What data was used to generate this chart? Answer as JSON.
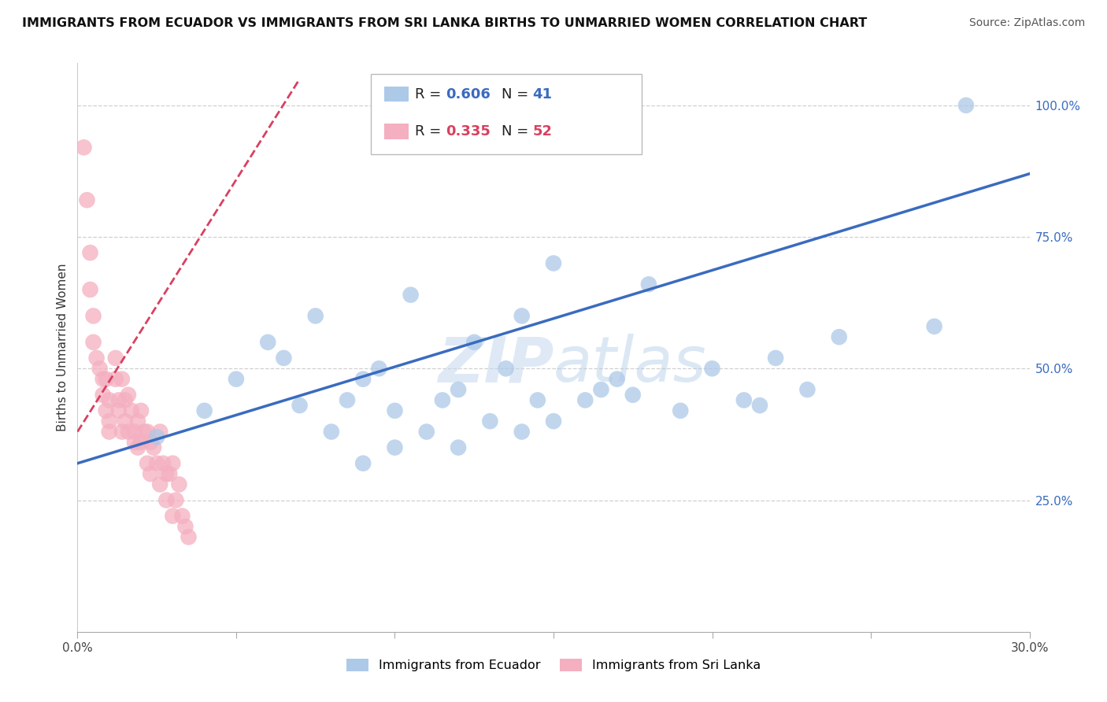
{
  "title": "IMMIGRANTS FROM ECUADOR VS IMMIGRANTS FROM SRI LANKA BIRTHS TO UNMARRIED WOMEN CORRELATION CHART",
  "source": "Source: ZipAtlas.com",
  "ylabel": "Births to Unmarried Women",
  "xlim": [
    0.0,
    0.3
  ],
  "ylim": [
    0.0,
    1.08
  ],
  "xtick_values": [
    0.0,
    0.05,
    0.1,
    0.15,
    0.2,
    0.25,
    0.3
  ],
  "xtick_labels": [
    "0.0%",
    "",
    "",
    "",
    "",
    "",
    "30.0%"
  ],
  "ytick_values": [
    0.25,
    0.5,
    0.75,
    1.0
  ],
  "ytick_labels": [
    "25.0%",
    "50.0%",
    "75.0%",
    "100.0%"
  ],
  "ecuador_color": "#adc9e8",
  "srilanka_color": "#f4afc0",
  "ecuador_line_color": "#3a6bbf",
  "srilanka_line_color": "#d94060",
  "ecuador_R": 0.606,
  "ecuador_N": 41,
  "srilanka_R": 0.335,
  "srilanka_N": 52,
  "ecuador_scatter_x": [
    0.025,
    0.04,
    0.05,
    0.06,
    0.065,
    0.07,
    0.075,
    0.08,
    0.085,
    0.09,
    0.09,
    0.095,
    0.1,
    0.1,
    0.105,
    0.11,
    0.115,
    0.12,
    0.12,
    0.125,
    0.13,
    0.135,
    0.14,
    0.14,
    0.145,
    0.15,
    0.15,
    0.16,
    0.165,
    0.17,
    0.175,
    0.18,
    0.19,
    0.2,
    0.21,
    0.215,
    0.22,
    0.23,
    0.24,
    0.27,
    0.28
  ],
  "ecuador_scatter_y": [
    0.37,
    0.42,
    0.48,
    0.55,
    0.52,
    0.43,
    0.6,
    0.38,
    0.44,
    0.32,
    0.48,
    0.5,
    0.35,
    0.42,
    0.64,
    0.38,
    0.44,
    0.35,
    0.46,
    0.55,
    0.4,
    0.5,
    0.38,
    0.6,
    0.44,
    0.4,
    0.7,
    0.44,
    0.46,
    0.48,
    0.45,
    0.66,
    0.42,
    0.5,
    0.44,
    0.43,
    0.52,
    0.46,
    0.56,
    0.58,
    1.0
  ],
  "srilanka_scatter_x": [
    0.002,
    0.003,
    0.004,
    0.004,
    0.005,
    0.005,
    0.006,
    0.007,
    0.008,
    0.008,
    0.009,
    0.009,
    0.01,
    0.01,
    0.01,
    0.012,
    0.012,
    0.013,
    0.013,
    0.014,
    0.014,
    0.015,
    0.015,
    0.016,
    0.016,
    0.017,
    0.018,
    0.018,
    0.019,
    0.019,
    0.02,
    0.02,
    0.021,
    0.022,
    0.022,
    0.023,
    0.023,
    0.024,
    0.025,
    0.026,
    0.026,
    0.027,
    0.028,
    0.028,
    0.029,
    0.03,
    0.03,
    0.031,
    0.032,
    0.033,
    0.034,
    0.035
  ],
  "srilanka_scatter_y": [
    0.92,
    0.82,
    0.72,
    0.65,
    0.6,
    0.55,
    0.52,
    0.5,
    0.48,
    0.45,
    0.48,
    0.42,
    0.44,
    0.4,
    0.38,
    0.52,
    0.48,
    0.44,
    0.42,
    0.48,
    0.38,
    0.44,
    0.4,
    0.45,
    0.38,
    0.42,
    0.38,
    0.36,
    0.4,
    0.35,
    0.42,
    0.36,
    0.38,
    0.38,
    0.32,
    0.36,
    0.3,
    0.35,
    0.32,
    0.38,
    0.28,
    0.32,
    0.3,
    0.25,
    0.3,
    0.32,
    0.22,
    0.25,
    0.28,
    0.22,
    0.2,
    0.18
  ],
  "ec_line_x0": 0.0,
  "ec_line_y0": 0.32,
  "ec_line_x1": 0.3,
  "ec_line_y1": 0.87,
  "sl_line_x0": 0.0,
  "sl_line_y0": 0.38,
  "sl_line_x1": 0.07,
  "sl_line_y1": 1.05
}
